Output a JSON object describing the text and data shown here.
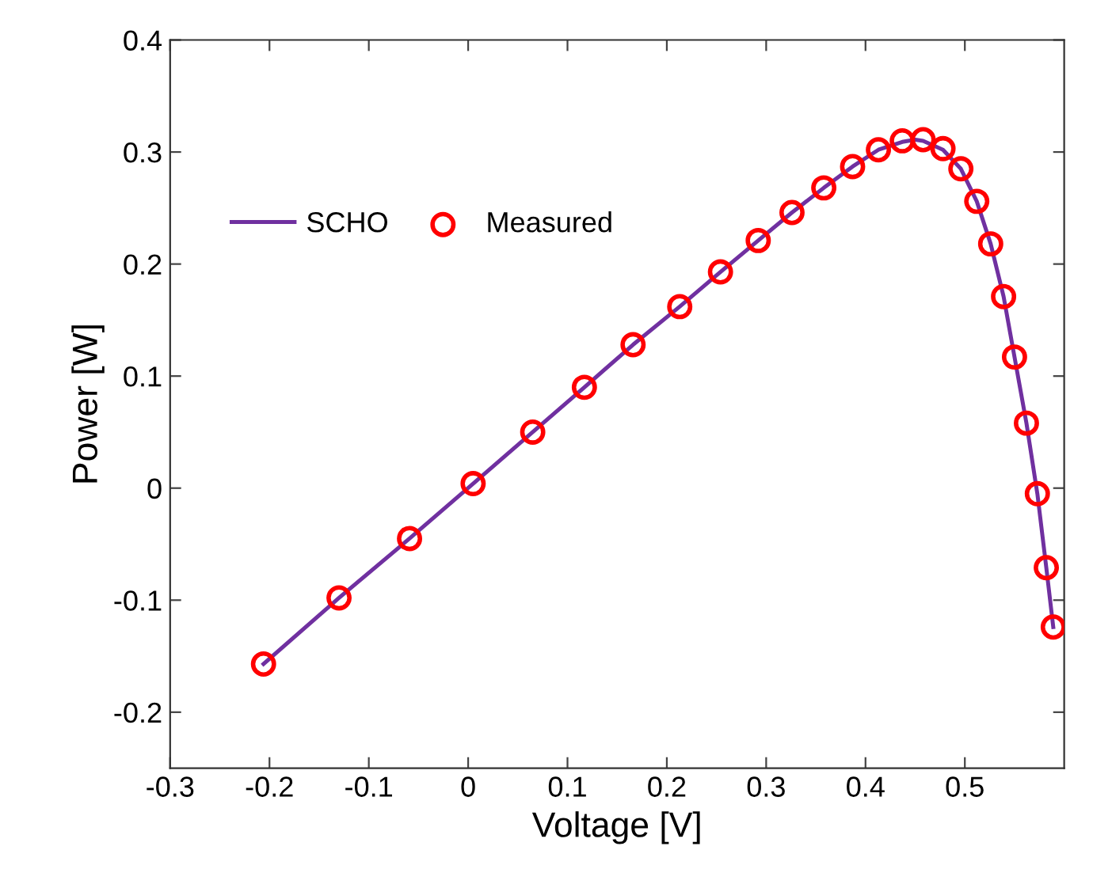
{
  "chart_data": {
    "type": "line",
    "xlabel": "Voltage [V]",
    "ylabel": "Power [W]",
    "xlim": [
      -0.3,
      0.6
    ],
    "xticks": [
      -0.3,
      -0.2,
      -0.1,
      0,
      0.1,
      0.2,
      0.3,
      0.4,
      0.5
    ],
    "ylim": [
      -0.25,
      0.4
    ],
    "yticks": [
      -0.2,
      -0.1,
      0,
      0.1,
      0.2,
      0.3,
      0.4
    ],
    "grid": false,
    "legend": "top left",
    "series": [
      {
        "name": "SCHO",
        "color": "#7030a0",
        "marker": "none",
        "line_style": "solid",
        "x": [
          -0.206,
          -0.13,
          -0.059,
          0.005,
          0.065,
          0.117,
          0.166,
          0.213,
          0.254,
          0.292,
          0.326,
          0.358,
          0.387,
          0.413,
          0.437,
          0.45,
          0.458,
          0.478,
          0.496,
          0.512,
          0.526,
          0.539,
          0.55,
          0.562,
          0.573,
          0.582,
          0.589
        ],
        "values": [
          -0.157,
          -0.098,
          -0.045,
          0.004,
          0.05,
          0.09,
          0.128,
          0.162,
          0.193,
          0.221,
          0.246,
          0.268,
          0.287,
          0.302,
          0.309,
          0.311,
          0.31,
          0.302,
          0.285,
          0.256,
          0.218,
          0.171,
          0.117,
          0.058,
          -0.005,
          -0.071,
          -0.124
        ]
      },
      {
        "name": "Measured",
        "type": "scatter",
        "color": "#ff0000",
        "marker": "circle",
        "x": [
          -0.206,
          -0.13,
          -0.059,
          0.005,
          0.065,
          0.117,
          0.166,
          0.213,
          0.254,
          0.292,
          0.326,
          0.358,
          0.387,
          0.413,
          0.437,
          0.458,
          0.478,
          0.496,
          0.512,
          0.526,
          0.539,
          0.55,
          0.562,
          0.573,
          0.582,
          0.589
        ],
        "values": [
          -0.157,
          -0.098,
          -0.045,
          0.004,
          0.05,
          0.09,
          0.128,
          0.162,
          0.193,
          0.221,
          0.246,
          0.268,
          0.287,
          0.302,
          0.31,
          0.311,
          0.303,
          0.285,
          0.256,
          0.218,
          0.171,
          0.117,
          0.058,
          -0.005,
          -0.071,
          -0.124
        ]
      }
    ]
  }
}
